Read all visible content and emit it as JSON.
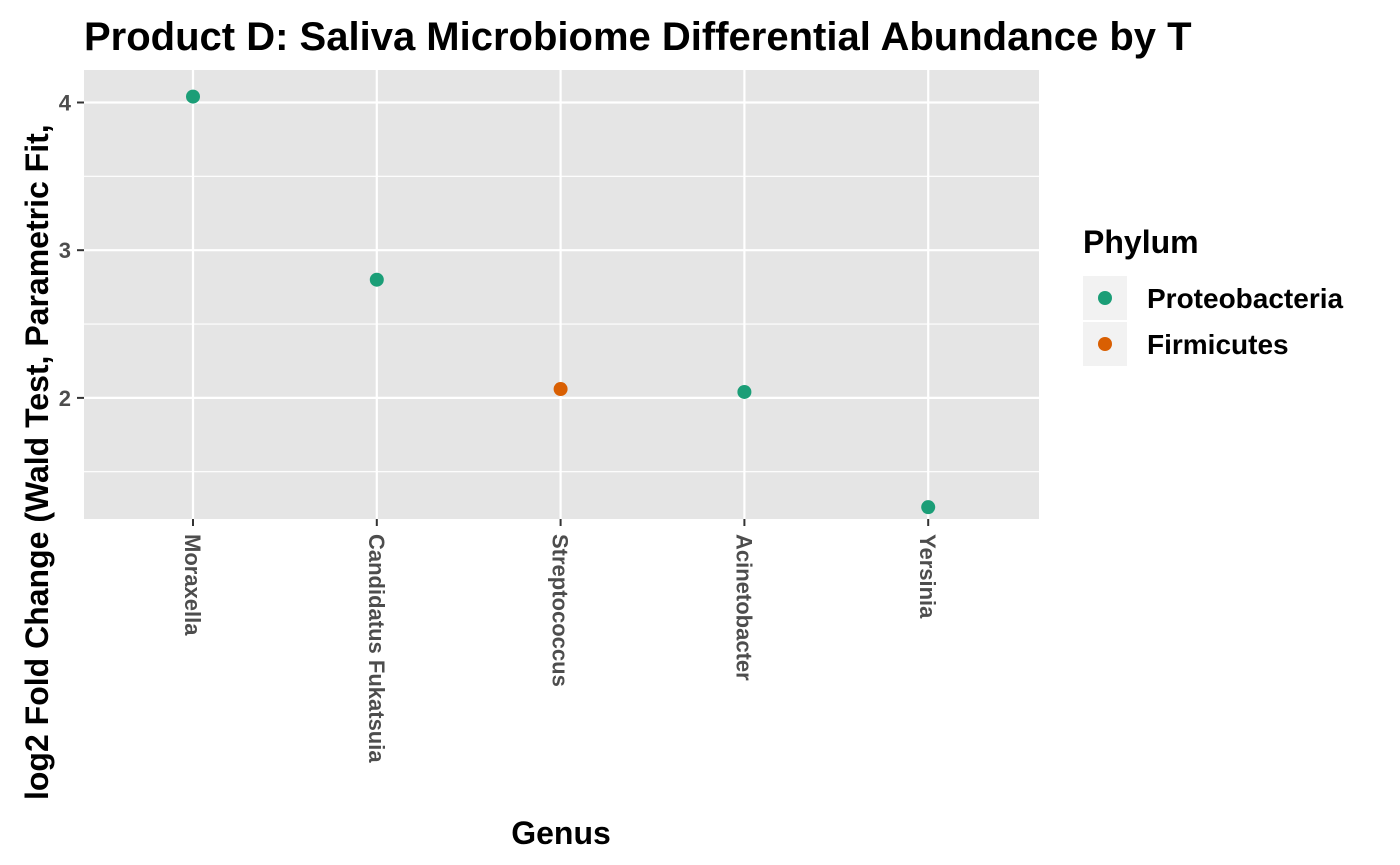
{
  "chart_data": {
    "type": "scatter",
    "title": "Product D: Saliva Microbiome Differential Abundance by T",
    "xlabel": "Genus",
    "ylabel": "log2 Fold Change (Wald Test, Parametric Fit,",
    "categories": [
      "Moraxella",
      "Candidatus Fukatsuia",
      "Streptococcus",
      "Acinetobacter",
      "Yersinia"
    ],
    "points": [
      {
        "genus": "Moraxella",
        "value": 4.04,
        "phylum": "Proteobacteria"
      },
      {
        "genus": "Candidatus Fukatsuia",
        "value": 2.8,
        "phylum": "Proteobacteria"
      },
      {
        "genus": "Streptococcus",
        "value": 2.06,
        "phylum": "Firmicutes"
      },
      {
        "genus": "Acinetobacter",
        "value": 2.04,
        "phylum": "Proteobacteria"
      },
      {
        "genus": "Yersinia",
        "value": 1.26,
        "phylum": "Proteobacteria"
      }
    ],
    "y_ticks": [
      2,
      3,
      4
    ],
    "ylim": [
      1.18,
      4.22
    ],
    "grid": true,
    "legend": {
      "title": "Phylum",
      "placement": "right",
      "entries": [
        {
          "label": "Proteobacteria",
          "color": "#1b9e77"
        },
        {
          "label": "Firmicutes",
          "color": "#d95f02"
        }
      ]
    },
    "panel_background": "#e5e5e5",
    "grid_color": "#ffffff"
  }
}
